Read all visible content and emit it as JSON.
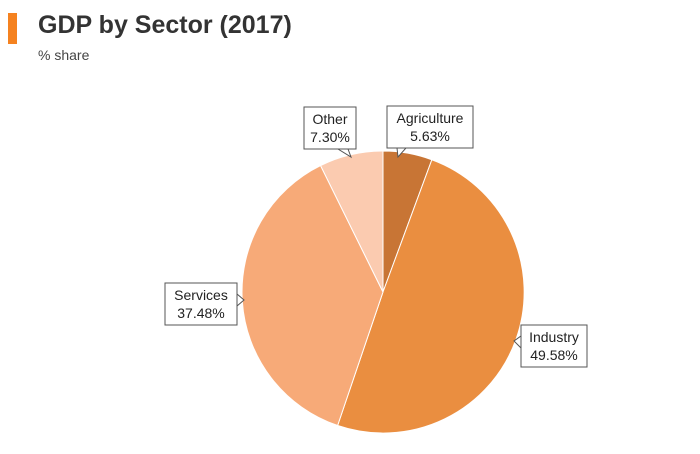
{
  "header": {
    "title": "GDP by Sector (2017)",
    "subtitle": "% share",
    "accent_color": "#f58220"
  },
  "chart_data": {
    "type": "pie",
    "title": "GDP by Sector (2017)",
    "subtitle": "% share",
    "start_angle_deg": 0,
    "direction": "clockwise",
    "slices": [
      {
        "label": "Agriculture",
        "value": 5.63,
        "value_label": "5.63%",
        "color": "#c87535"
      },
      {
        "label": "Industry",
        "value": 49.58,
        "value_label": "49.58%",
        "color": "#ea8e40"
      },
      {
        "label": "Services",
        "value": 37.48,
        "value_label": "37.48%",
        "color": "#f7aa78"
      },
      {
        "label": "Other",
        "value": 7.3,
        "value_label": "7.30%",
        "color": "#fbcbb0"
      }
    ]
  }
}
